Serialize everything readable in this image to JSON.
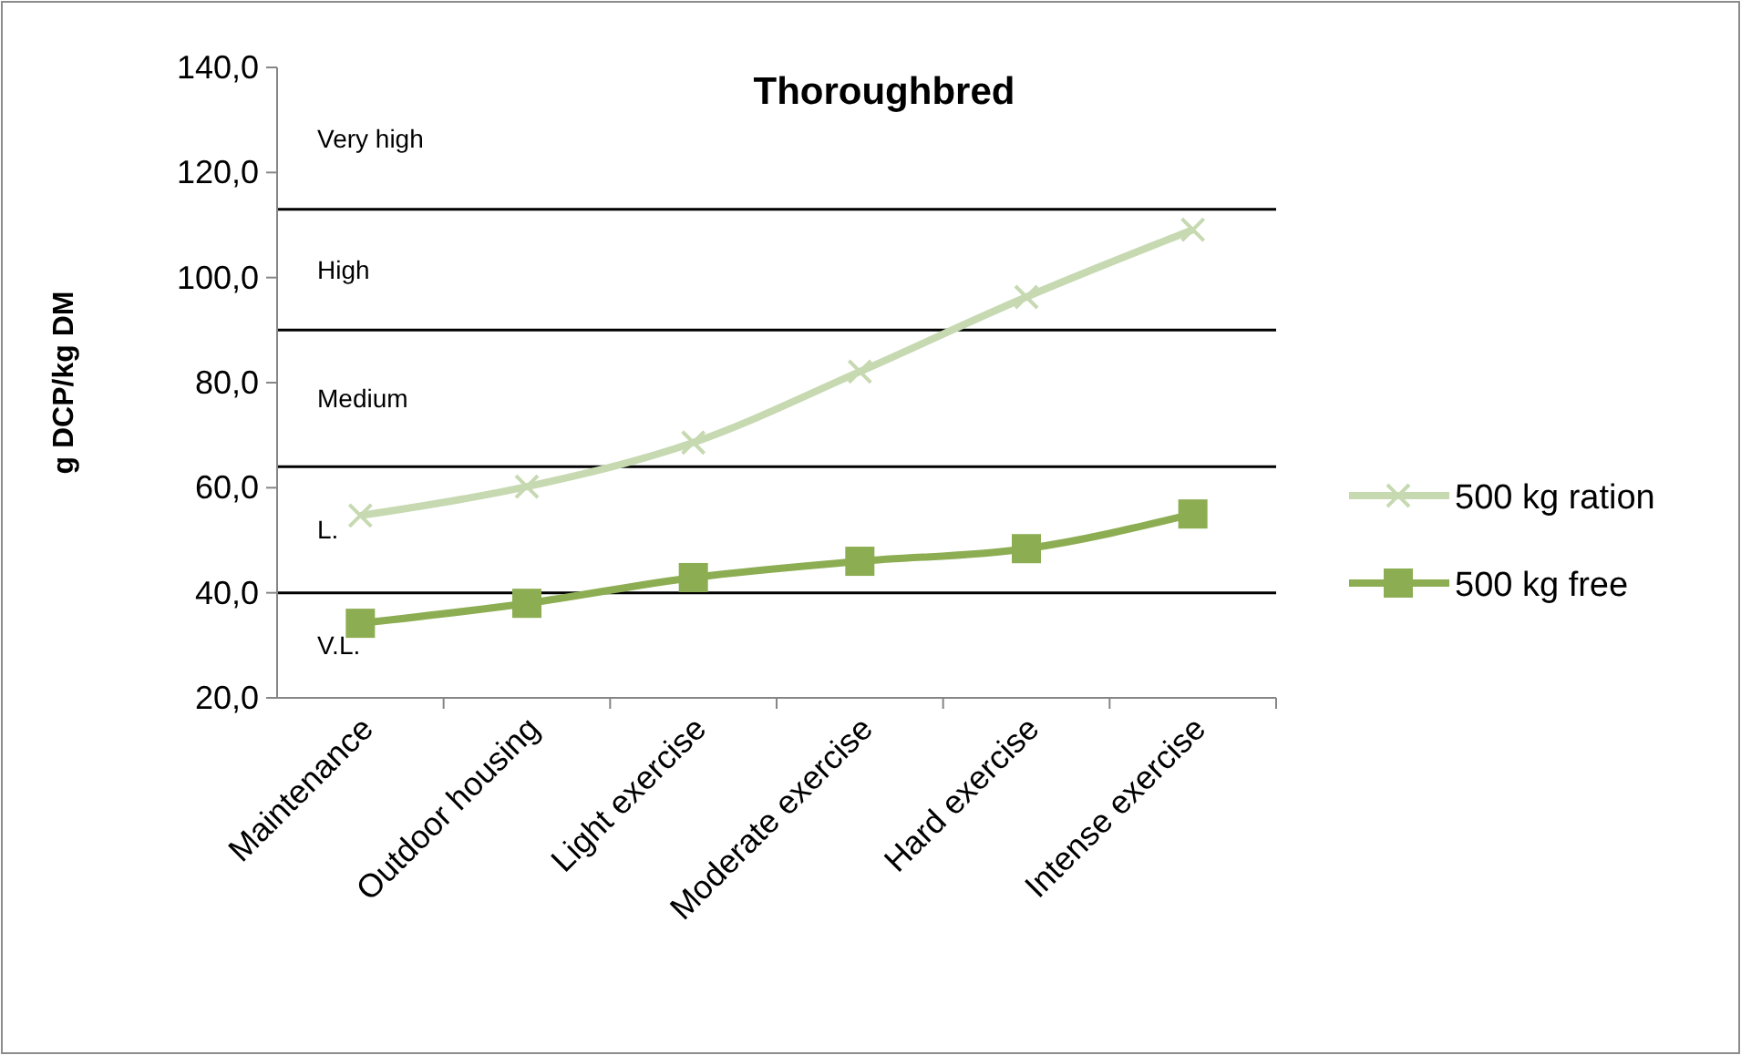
{
  "chart_data": {
    "type": "line",
    "title": "Thoroughbred",
    "ylabel": "g DCP/kg DM",
    "categories": [
      "Maintenance",
      "Outdoor housing",
      "Light exercise",
      "Moderate exercise",
      "Hard exercise",
      "Intense exercise"
    ],
    "series": [
      {
        "name": "500 kg ration",
        "color": "#c6d9b1",
        "marker": "cross",
        "values": [
          54.7,
          60.2,
          68.6,
          82.1,
          96.3,
          109.1
        ]
      },
      {
        "name": "500 kg free",
        "color": "#8cad52",
        "marker": "square",
        "values": [
          34.2,
          38.0,
          42.9,
          46.0,
          48.4,
          55.0
        ]
      }
    ],
    "ylim": [
      20,
      140
    ],
    "yticks": [
      {
        "value": 20,
        "label": "20,0"
      },
      {
        "value": 40,
        "label": "40,0"
      },
      {
        "value": 60,
        "label": "60,0"
      },
      {
        "value": 80,
        "label": "80,0"
      },
      {
        "value": 100,
        "label": "100,0"
      },
      {
        "value": 120,
        "label": "120,0"
      },
      {
        "value": 140,
        "label": "140,0"
      }
    ],
    "ref_lines": [
      {
        "axis": "y",
        "value": 40,
        "color": "#000000"
      },
      {
        "axis": "y",
        "value": 64,
        "color": "#000000"
      },
      {
        "axis": "y",
        "value": 90,
        "color": "#000000"
      },
      {
        "axis": "y",
        "value": 113,
        "color": "#000000"
      }
    ],
    "annotations": [
      "V.L.",
      "L.",
      "Medium",
      "High",
      "Very high"
    ],
    "legend": "right",
    "line_style": "solid"
  }
}
